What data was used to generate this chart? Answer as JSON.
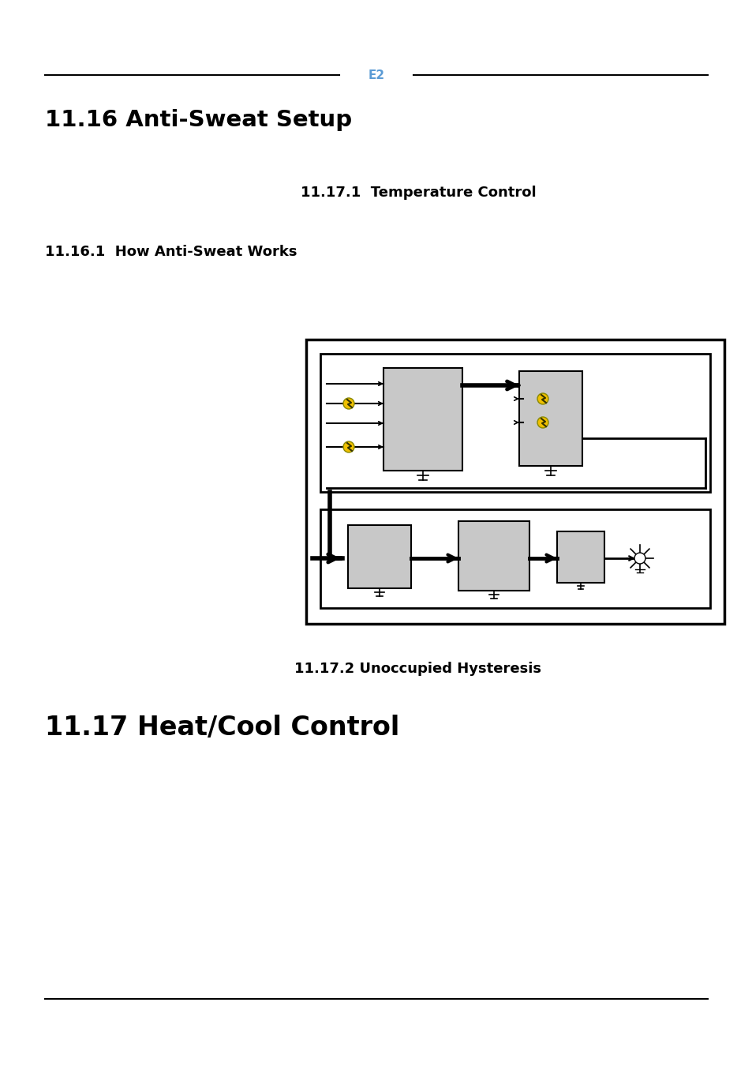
{
  "title1": "11.16 Anti-Sweat Setup",
  "title2": "11.17 Heat/Cool Control",
  "subtitle1": "11.17.1  Temperature Control",
  "subtitle2": "11.16.1  How Anti-Sweat Works",
  "subtitle3": "11.17.2 Unoccupied Hysteresis",
  "bg_color": "#ffffff",
  "logo_color": "#5b9bd5",
  "logo_text": "E2"
}
